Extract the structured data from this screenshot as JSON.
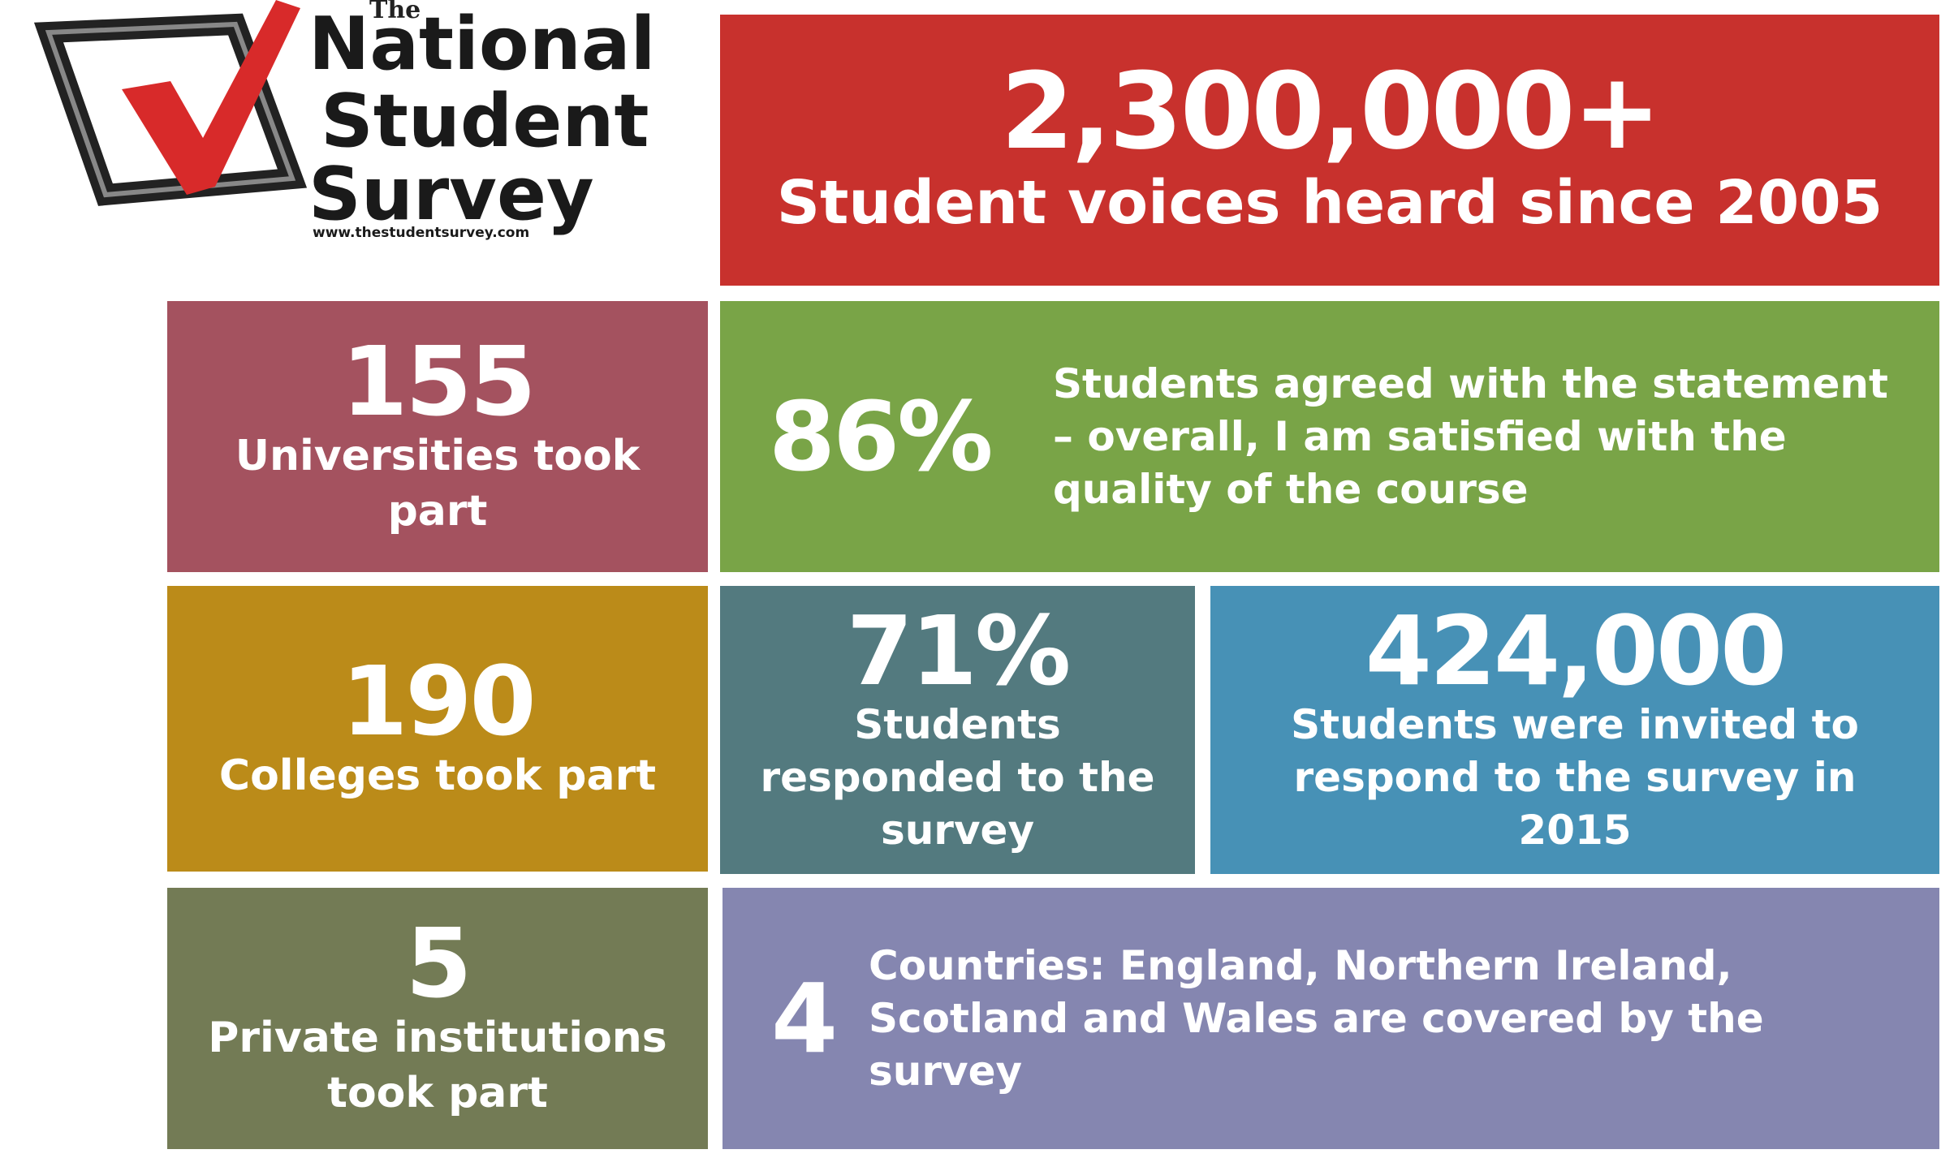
{
  "logo": {
    "the": "The",
    "line1": "National",
    "line2": "Student",
    "line3": "Survey",
    "url": "www.thestudentsurvey.com"
  },
  "tiles": [
    {
      "number": "2,300,000+",
      "text": "Student voices heard since 2005"
    },
    {
      "number": "155",
      "text": "Universities took part"
    },
    {
      "number": "86%",
      "text": "Students agreed with the statement – overall, I am satisfied with the quality of the course"
    },
    {
      "number": "190",
      "text": "Colleges took part"
    },
    {
      "number": "71%",
      "text": "Students responded to the survey"
    },
    {
      "number": "424,000",
      "text": "Students were invited to respond to the survey in 2015"
    },
    {
      "number": "5",
      "text": "Private institutions took part"
    },
    {
      "number": "4",
      "text": "Countries: England, Northern Ireland, Scotland and Wales are covered by the survey"
    }
  ]
}
